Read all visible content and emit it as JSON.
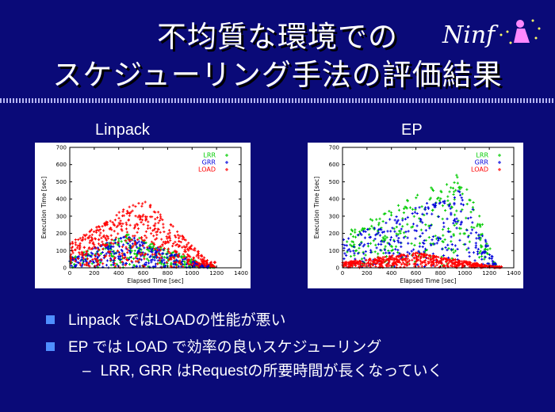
{
  "slide": {
    "title_line1": "不均質な環境での",
    "title_line2": "スケジューリング手法の評価結果",
    "logo_text": "Ninf",
    "bullets": [
      "Linpack ではLOADの性能が悪い",
      "EP では LOAD で効率の良いスケジューリング"
    ],
    "sub_bullet_dash": "–",
    "sub_bullet": "LRR, GRR はRequestの所要時間が長くなっていく"
  },
  "chart_data": [
    {
      "type": "scatter",
      "title": "Linpack",
      "xlabel": "Elapsed Time [sec]",
      "ylabel": "Execution Time [sec]",
      "xlim": [
        0,
        1400
      ],
      "ylim": [
        0,
        700
      ],
      "xticks": [
        "0",
        "200",
        "400",
        "600",
        "800",
        "1000",
        "1200",
        "1400"
      ],
      "yticks": [
        "0",
        "100",
        "200",
        "300",
        "400",
        "500",
        "600",
        "700"
      ],
      "legend": "top-right",
      "grid": false,
      "series": [
        {
          "name": "LRR",
          "color": "#00cc00",
          "marker": "+",
          "region": {
            "x": [
              0,
              1180
            ],
            "y_peak_x": 480,
            "y_peak": 200
          }
        },
        {
          "name": "GRR",
          "color": "#0000dd",
          "marker": "x",
          "region": {
            "x": [
              0,
              1150
            ],
            "y_peak_x": 480,
            "y_peak": 190
          }
        },
        {
          "name": "LOAD",
          "color": "#ff0000",
          "marker": "*",
          "region": {
            "x": [
              0,
              1190
            ],
            "y_peak_x": 600,
            "y_peak": 410
          }
        }
      ]
    },
    {
      "type": "scatter",
      "title": "EP",
      "xlabel": "Elapsed Time [sec]",
      "ylabel": "Execution Time [sec]",
      "xlim": [
        0,
        1400
      ],
      "ylim": [
        0,
        700
      ],
      "xticks": [
        "0",
        "200",
        "400",
        "600",
        "800",
        "1000",
        "1200",
        "1400"
      ],
      "yticks": [
        "0",
        "100",
        "200",
        "300",
        "400",
        "500",
        "600",
        "700"
      ],
      "legend": "top-right",
      "grid": false,
      "series": [
        {
          "name": "LRR",
          "color": "#00cc00",
          "marker": "+",
          "region": {
            "x": [
              0,
              1260
            ],
            "y_peak_x": 1000,
            "y_peak": 570
          }
        },
        {
          "name": "GRR",
          "color": "#0000dd",
          "marker": "x",
          "region": {
            "x": [
              0,
              1260
            ],
            "y_peak_x": 1000,
            "y_peak": 470
          }
        },
        {
          "name": "LOAD",
          "color": "#ff0000",
          "marker": "*",
          "region": {
            "x": [
              0,
              1300
            ],
            "y_peak_x": 600,
            "y_peak": 90
          }
        }
      ]
    }
  ]
}
